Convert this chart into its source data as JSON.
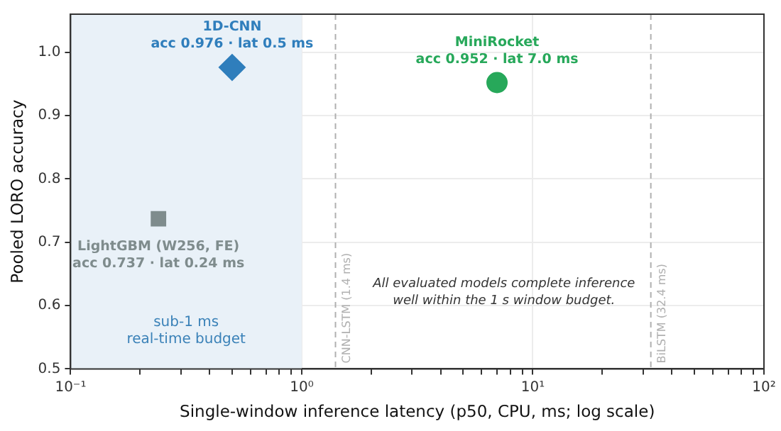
{
  "chart_data": {
    "type": "scatter",
    "xlabel": "Single-window inference latency (p50, CPU, ms; log scale)",
    "ylabel": "Pooled LORO accuracy",
    "log": "x",
    "grid": true,
    "legend": false,
    "xlim": [
      0.1,
      100
    ],
    "xticks": [
      {
        "value": 0.1,
        "label": "10⁻¹"
      },
      {
        "value": 0.2,
        "label": null
      },
      {
        "value": 0.3,
        "label": null
      },
      {
        "value": 0.4,
        "label": null
      },
      {
        "value": 0.5,
        "label": null
      },
      {
        "value": 0.6,
        "label": null
      },
      {
        "value": 0.7,
        "label": null
      },
      {
        "value": 0.8,
        "label": null
      },
      {
        "value": 0.9,
        "label": null
      },
      {
        "value": 1,
        "label": "10⁰"
      },
      {
        "value": 2,
        "label": null
      },
      {
        "value": 3,
        "label": null
      },
      {
        "value": 4,
        "label": null
      },
      {
        "value": 5,
        "label": null
      },
      {
        "value": 6,
        "label": null
      },
      {
        "value": 7,
        "label": null
      },
      {
        "value": 8,
        "label": null
      },
      {
        "value": 9,
        "label": null
      },
      {
        "value": 10,
        "label": "10¹"
      },
      {
        "value": 20,
        "label": null
      },
      {
        "value": 30,
        "label": null
      },
      {
        "value": 40,
        "label": null
      },
      {
        "value": 50,
        "label": null
      },
      {
        "value": 60,
        "label": null
      },
      {
        "value": 70,
        "label": null
      },
      {
        "value": 80,
        "label": null
      },
      {
        "value": 90,
        "label": null
      },
      {
        "value": 100,
        "label": "10²"
      }
    ],
    "ylim": [
      0.5,
      1.06
    ],
    "yticks": [
      {
        "value": 0.5,
        "label": "0.5"
      },
      {
        "value": 0.6,
        "label": "0.6"
      },
      {
        "value": 0.7,
        "label": "0.7"
      },
      {
        "value": 0.8,
        "label": "0.8"
      },
      {
        "value": 0.9,
        "label": "0.9"
      },
      {
        "value": 1,
        "label": "1.0"
      }
    ],
    "series": [
      {
        "name": "1D-CNN",
        "color": "#2f7ebc",
        "marker": "diamond",
        "x": [
          0.5
        ],
        "values": [
          0.976
        ],
        "value_labels": [
          "acc 0.976 · lat 0.5 ms"
        ]
      },
      {
        "name": "MiniRocket",
        "color": "#27a85a",
        "marker": "circle",
        "x": [
          7.0
        ],
        "values": [
          0.952
        ],
        "value_labels": [
          "acc 0.952 · lat 7.0 ms"
        ]
      },
      {
        "name": "LightGBM (W256, FE)",
        "color": "#7f8c8d",
        "marker": "square",
        "x": [
          0.24
        ],
        "values": [
          0.737
        ],
        "value_labels": [
          "acc 0.737 · lat 0.24 ms"
        ]
      }
    ],
    "bands": [
      {
        "axis": "x",
        "from": 0.1,
        "to": 1,
        "label": "sub-1 ms\nreal-time budget",
        "color": "#e9f1f8"
      }
    ],
    "ref_lines": [
      {
        "axis": "x",
        "value": 1.4,
        "label": "CNN-LSTM (1.4 ms)",
        "color": "#b0b0b0",
        "line_style": "dashed"
      },
      {
        "axis": "x",
        "value": 32.4,
        "label": "BiLSTM (32.4 ms)",
        "color": "#b0b0b0",
        "line_style": "dashed"
      }
    ],
    "annotations": [
      "All evaluated models complete inference\nwell within the 1 s window budget."
    ]
  }
}
